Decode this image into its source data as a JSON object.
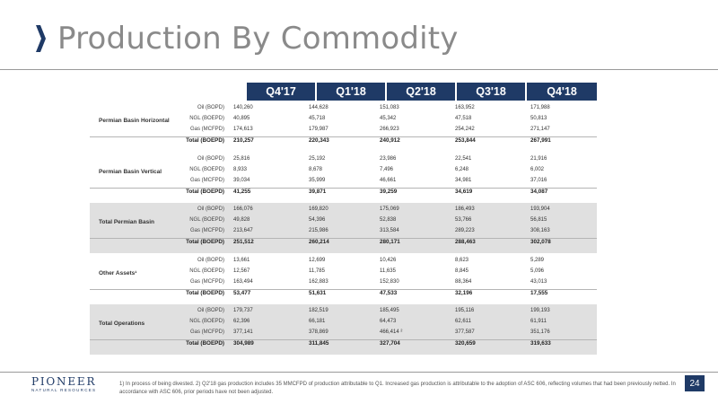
{
  "header": {
    "title": "Production By Commodity",
    "chevron_icon": "chevron-right-icon",
    "accent_color": "#1f3a66"
  },
  "columns": [
    "Q4'17",
    "Q1'18",
    "Q2'18",
    "Q3'18",
    "Q4'18"
  ],
  "sections": [
    {
      "name": "Permian Basin Horizontal",
      "shaded": false,
      "rows": [
        {
          "label": "Oil (BOPD)",
          "values": [
            "140,260",
            "144,628",
            "151,083",
            "163,952",
            "171,988"
          ]
        },
        {
          "label": "NGL (BOEPD)",
          "values": [
            "40,895",
            "45,718",
            "45,342",
            "47,518",
            "50,813"
          ]
        },
        {
          "label": "Gas (MCFPD)",
          "values": [
            "174,613",
            "179,987",
            "266,923",
            "254,242",
            "271,147"
          ]
        },
        {
          "label": "Total (BOEPD)",
          "values": [
            "210,257",
            "220,343",
            "240,912",
            "253,844",
            "267,991"
          ]
        }
      ]
    },
    {
      "name": "Permian Basin Vertical",
      "shaded": false,
      "rows": [
        {
          "label": "Oil (BOPD)",
          "values": [
            "25,816",
            "25,192",
            "23,986",
            "22,541",
            "21,916"
          ]
        },
        {
          "label": "NGL (BOEPD)",
          "values": [
            "8,933",
            "8,678",
            "7,496",
            "6,248",
            "6,002"
          ]
        },
        {
          "label": "Gas (MCFPD)",
          "values": [
            "39,034",
            "35,999",
            "46,661",
            "34,981",
            "37,016"
          ]
        },
        {
          "label": "Total (BOEPD)",
          "values": [
            "41,255",
            "39,871",
            "39,259",
            "34,619",
            "34,087"
          ]
        }
      ]
    },
    {
      "name": "Total Permian Basin",
      "shaded": true,
      "rows": [
        {
          "label": "Oil (BOPD)",
          "values": [
            "166,076",
            "169,820",
            "175,069",
            "186,493",
            "193,904"
          ]
        },
        {
          "label": "NGL (BOEPD)",
          "values": [
            "49,828",
            "54,396",
            "52,838",
            "53,766",
            "56,815"
          ]
        },
        {
          "label": "Gas (MCFPD)",
          "values": [
            "213,647",
            "215,986",
            "313,584",
            "289,223",
            "308,163"
          ]
        },
        {
          "label": "Total (BOEPD)",
          "values": [
            "251,512",
            "260,214",
            "280,171",
            "288,463",
            "302,078"
          ]
        }
      ]
    },
    {
      "name": "Other Assets¹",
      "shaded": false,
      "rows": [
        {
          "label": "Oil (BOPD)",
          "values": [
            "13,661",
            "12,699",
            "10,426",
            "8,623",
            "5,289"
          ]
        },
        {
          "label": "NGL (BOEPD)",
          "values": [
            "12,567",
            "11,785",
            "11,635",
            "8,845",
            "5,096"
          ]
        },
        {
          "label": "Gas (MCFPD)",
          "values": [
            "163,494",
            "162,883",
            "152,830",
            "88,364",
            "43,013"
          ]
        },
        {
          "label": "Total (BOEPD)",
          "values": [
            "53,477",
            "51,631",
            "47,533",
            "32,196",
            "17,555"
          ]
        }
      ]
    },
    {
      "name": "Total Operations",
      "shaded": true,
      "rows": [
        {
          "label": "Oil (BOPD)",
          "values": [
            "179,737",
            "182,519",
            "185,495",
            "195,116",
            "199,193"
          ]
        },
        {
          "label": "NGL (BOEPD)",
          "values": [
            "62,396",
            "66,181",
            "64,473",
            "62,611",
            "61,911"
          ]
        },
        {
          "label": "Gas (MCFPD)",
          "values": [
            "377,141",
            "378,869",
            "466,414 ²",
            "377,587",
            "351,176"
          ]
        },
        {
          "label": "Total (BOEPD)",
          "values": [
            "304,989",
            "311,845",
            "327,704",
            "320,659",
            "319,633"
          ]
        }
      ]
    }
  ],
  "footer": {
    "logo_main": "PIONEER",
    "logo_sub": "NATURAL RESOURCES",
    "footnote": "1) In process of being divested.  2) Q2'18 gas production includes 35 MMCFPD of production attributable to Q1.  Increased gas production is attributable to the adoption of ASC 606, reflecting volumes that had been previously netted.  In accordance with ASC 606, prior periods have not been adjusted.",
    "page_number": "24"
  }
}
